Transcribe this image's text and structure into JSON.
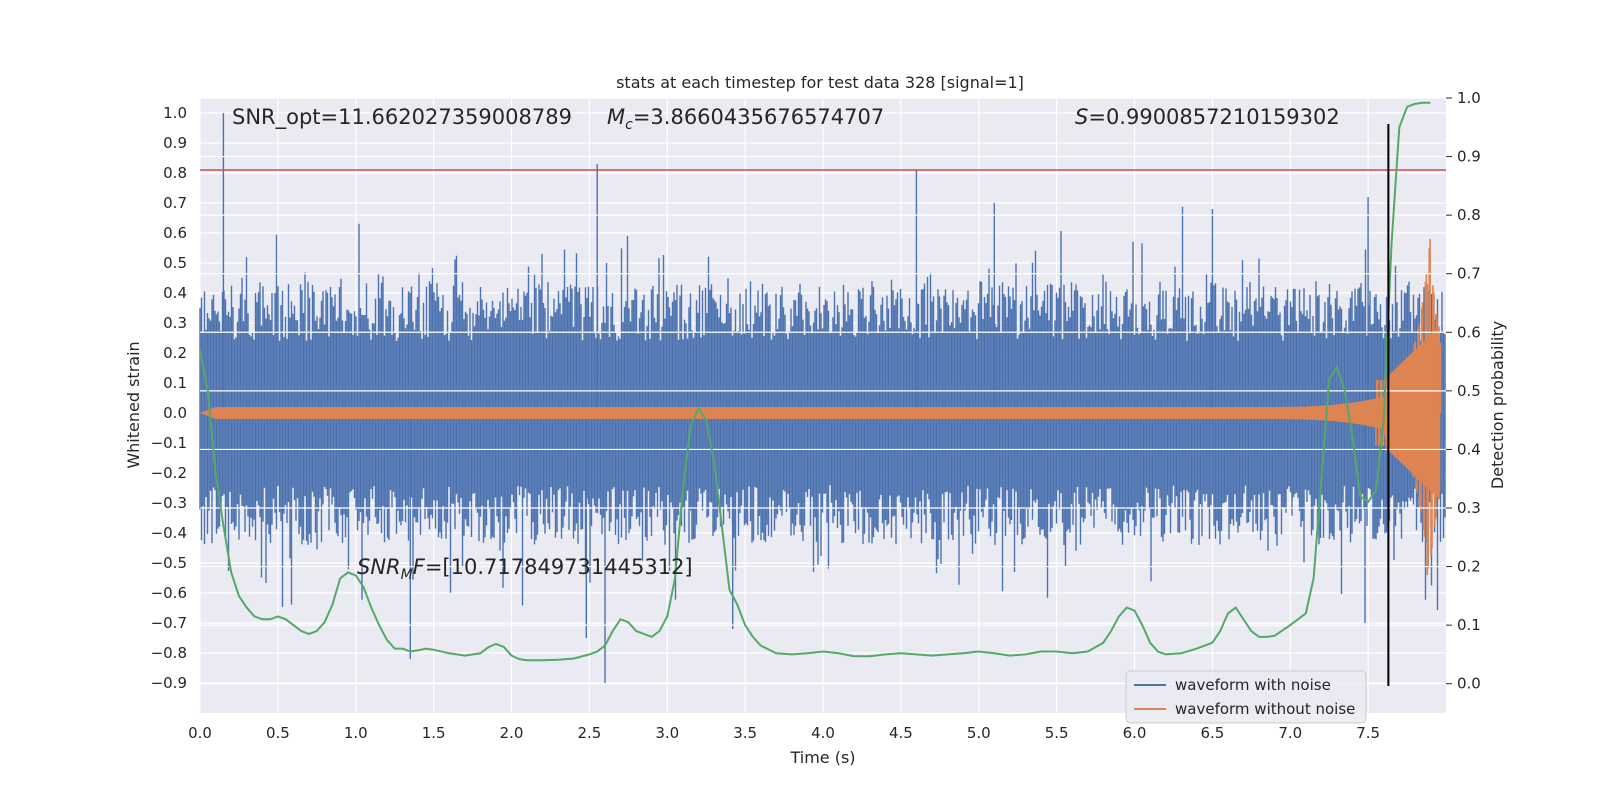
{
  "chart_data": {
    "type": "line",
    "title": "stats at each timestep for test data 328 [signal=1]",
    "xlabel": "Time (s)",
    "ylabel": "Whitened strain",
    "ylabel_right": "Detection probability",
    "xlim": [
      0.0,
      8.0
    ],
    "ylim": [
      -1.0,
      1.05
    ],
    "ylim_right": [
      -0.05,
      1.0
    ],
    "x_ticks": [
      "0.0",
      "0.5",
      "1.0",
      "1.5",
      "2.0",
      "2.5",
      "3.0",
      "3.5",
      "4.0",
      "4.5",
      "5.0",
      "5.5",
      "6.0",
      "6.5",
      "7.0",
      "7.5"
    ],
    "y_ticks": [
      "1.0",
      "0.9",
      "0.8",
      "0.7",
      "0.6",
      "0.5",
      "0.4",
      "0.3",
      "0.2",
      "0.1",
      "0.0",
      "−0.1",
      "−0.2",
      "−0.3",
      "−0.4",
      "−0.5",
      "−0.6",
      "−0.7",
      "−0.8",
      "−0.9"
    ],
    "y_right_ticks": [
      "1.0",
      "0.9",
      "0.8",
      "0.7",
      "0.6",
      "0.5",
      "0.4",
      "0.3",
      "0.2",
      "0.1",
      "0.0"
    ],
    "annotations": {
      "snr_opt": "SNR_opt=11.662027359008789",
      "mc_symbol": "M",
      "mc_sub": "c",
      "mc_value": "=3.8660435676574707",
      "s_symbol": "S",
      "s_value": "=0.9900857210159302",
      "snrmf_symbol": "SNR",
      "snrmf_sub": "M",
      "snrmf_suffix": "F",
      "snrmf_value": "=[10.717849731445312]"
    },
    "threshold_line": {
      "y": 0.81,
      "color": "#c44e52"
    },
    "detection_time": 7.63,
    "series": [
      {
        "name": "waveform with noise",
        "color": "#4c72b0"
      },
      {
        "name": "waveform without noise",
        "color": "#dd8452"
      }
    ],
    "probability_series": {
      "color": "#55a868",
      "x": [
        0.0,
        0.05,
        0.1,
        0.15,
        0.2,
        0.25,
        0.3,
        0.35,
        0.4,
        0.45,
        0.5,
        0.55,
        0.6,
        0.65,
        0.7,
        0.75,
        0.8,
        0.85,
        0.9,
        0.95,
        1.0,
        1.05,
        1.1,
        1.15,
        1.2,
        1.25,
        1.3,
        1.35,
        1.4,
        1.45,
        1.5,
        1.6,
        1.7,
        1.8,
        1.85,
        1.9,
        1.95,
        2.0,
        2.05,
        2.1,
        2.2,
        2.3,
        2.4,
        2.5,
        2.55,
        2.6,
        2.65,
        2.7,
        2.75,
        2.8,
        2.85,
        2.9,
        2.95,
        3.0,
        3.05,
        3.1,
        3.15,
        3.2,
        3.25,
        3.3,
        3.35,
        3.4,
        3.45,
        3.5,
        3.55,
        3.6,
        3.7,
        3.8,
        3.9,
        4.0,
        4.1,
        4.2,
        4.3,
        4.4,
        4.5,
        4.6,
        4.7,
        4.8,
        4.9,
        5.0,
        5.1,
        5.2,
        5.3,
        5.4,
        5.5,
        5.6,
        5.7,
        5.8,
        5.85,
        5.9,
        5.95,
        6.0,
        6.05,
        6.1,
        6.15,
        6.2,
        6.3,
        6.4,
        6.5,
        6.55,
        6.6,
        6.65,
        6.7,
        6.75,
        6.8,
        6.85,
        6.9,
        7.0,
        7.1,
        7.15,
        7.2,
        7.25,
        7.3,
        7.35,
        7.4,
        7.45,
        7.5,
        7.55,
        7.6,
        7.65,
        7.7,
        7.75,
        7.8,
        7.85,
        7.9
      ],
      "y": [
        0.57,
        0.5,
        0.36,
        0.27,
        0.19,
        0.15,
        0.13,
        0.115,
        0.11,
        0.11,
        0.115,
        0.11,
        0.1,
        0.09,
        0.085,
        0.09,
        0.105,
        0.135,
        0.18,
        0.19,
        0.185,
        0.165,
        0.13,
        0.1,
        0.075,
        0.06,
        0.06,
        0.055,
        0.057,
        0.06,
        0.058,
        0.052,
        0.048,
        0.052,
        0.062,
        0.068,
        0.063,
        0.048,
        0.042,
        0.04,
        0.04,
        0.041,
        0.043,
        0.05,
        0.055,
        0.065,
        0.09,
        0.11,
        0.105,
        0.09,
        0.085,
        0.08,
        0.09,
        0.115,
        0.18,
        0.33,
        0.44,
        0.47,
        0.45,
        0.38,
        0.27,
        0.16,
        0.135,
        0.1,
        0.08,
        0.065,
        0.052,
        0.05,
        0.052,
        0.055,
        0.052,
        0.047,
        0.047,
        0.05,
        0.052,
        0.05,
        0.048,
        0.05,
        0.052,
        0.055,
        0.052,
        0.048,
        0.05,
        0.055,
        0.055,
        0.052,
        0.055,
        0.07,
        0.09,
        0.115,
        0.13,
        0.125,
        0.1,
        0.07,
        0.055,
        0.05,
        0.052,
        0.06,
        0.07,
        0.09,
        0.12,
        0.13,
        0.11,
        0.09,
        0.08,
        0.08,
        0.082,
        0.1,
        0.12,
        0.18,
        0.35,
        0.52,
        0.54,
        0.5,
        0.42,
        0.32,
        0.31,
        0.33,
        0.45,
        0.75,
        0.95,
        0.985,
        0.99,
        0.992,
        0.992
      ]
    }
  }
}
